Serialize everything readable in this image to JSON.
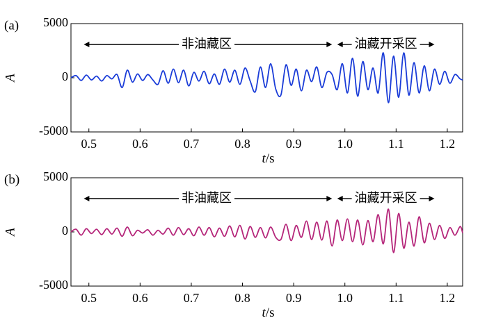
{
  "chart_data": [
    {
      "type": "line",
      "panel_label": "(a)",
      "xlabel_italic": "t",
      "xlabel_unit": "/s",
      "ylabel": "A",
      "xlim": [
        0.465,
        1.23
      ],
      "ylim": [
        -5000,
        5000
      ],
      "yticks": [
        "5000",
        "0",
        "-5000"
      ],
      "xticks": [
        {
          "value": 0.5,
          "label": "0.5"
        },
        {
          "value": 0.6,
          "label": "0.6"
        },
        {
          "value": 0.7,
          "label": "0.7"
        },
        {
          "value": 0.8,
          "label": "0.8"
        },
        {
          "value": 0.9,
          "label": "0.9"
        },
        {
          "value": 1.0,
          "label": "1.0"
        },
        {
          "value": 1.1,
          "label": "1.1"
        },
        {
          "value": 1.2,
          "label": "1.2"
        }
      ],
      "annotations": [
        {
          "text": "非油藏区",
          "x_start": 0.49,
          "x_end": 0.975,
          "text_x": 0.73
        },
        {
          "text": "油藏开采区",
          "x_start": 0.985,
          "x_end": 1.175,
          "text_x": 1.08
        }
      ],
      "color": "#1a3cd8",
      "series": [
        {
          "x": [
            0.465,
            0.475,
            0.485,
            0.495,
            0.505,
            0.515,
            0.525,
            0.535,
            0.545,
            0.555,
            0.565,
            0.575,
            0.585,
            0.595,
            0.605,
            0.615,
            0.625,
            0.635,
            0.645,
            0.655,
            0.665,
            0.675,
            0.685,
            0.695,
            0.705,
            0.715,
            0.725,
            0.735,
            0.745,
            0.755,
            0.765,
            0.775,
            0.785,
            0.795,
            0.805,
            0.815,
            0.825,
            0.835,
            0.845,
            0.855,
            0.865,
            0.875,
            0.885,
            0.895,
            0.905,
            0.915,
            0.925,
            0.935,
            0.945,
            0.955,
            0.965,
            0.975,
            0.985,
            0.995,
            1.005,
            1.015,
            1.025,
            1.035,
            1.045,
            1.055,
            1.065,
            1.075,
            1.085,
            1.095,
            1.105,
            1.115,
            1.125,
            1.135,
            1.145,
            1.155,
            1.165,
            1.175,
            1.185,
            1.195,
            1.205,
            1.215,
            1.225,
            1.23
          ],
          "y": [
            0,
            200,
            -250,
            250,
            -200,
            150,
            -300,
            200,
            -100,
            300,
            -900,
            700,
            -400,
            350,
            -250,
            300,
            -200,
            -600,
            650,
            -500,
            800,
            -450,
            700,
            -750,
            500,
            -300,
            600,
            -550,
            350,
            -600,
            800,
            -400,
            700,
            -600,
            900,
            -300,
            -1300,
            1000,
            -900,
            1300,
            -1050,
            -1600,
            1200,
            -700,
            800,
            -1200,
            700,
            -350,
            1000,
            -900,
            500,
            300,
            -1100,
            1300,
            -1400,
            1800,
            -1700,
            1500,
            -1100,
            900,
            -1400,
            2300,
            -2300,
            2000,
            -1800,
            2300,
            -1600,
            1400,
            -1400,
            1100,
            -1200,
            800,
            -600,
            600,
            -500,
            300,
            -100,
            -200
          ]
        }
      ]
    },
    {
      "type": "line",
      "panel_label": "(b)",
      "xlabel_italic": "t",
      "xlabel_unit": "/s",
      "ylabel": "A",
      "xlim": [
        0.465,
        1.23
      ],
      "ylim": [
        -5000,
        5000
      ],
      "yticks": [
        "5000",
        "0",
        "-5000"
      ],
      "xticks": [
        {
          "value": 0.5,
          "label": "0.5"
        },
        {
          "value": 0.6,
          "label": "0.6"
        },
        {
          "value": 0.7,
          "label": "0.7"
        },
        {
          "value": 0.8,
          "label": "0.8"
        },
        {
          "value": 0.9,
          "label": "0.9"
        },
        {
          "value": 1.0,
          "label": "1.0"
        },
        {
          "value": 1.1,
          "label": "1.1"
        },
        {
          "value": 1.2,
          "label": "1.2"
        }
      ],
      "annotations": [
        {
          "text": "非油藏区",
          "x_start": 0.49,
          "x_end": 0.975,
          "text_x": 0.73
        },
        {
          "text": "油藏开采区",
          "x_start": 0.985,
          "x_end": 1.175,
          "text_x": 1.08
        }
      ],
      "color": "#b5267a",
      "series": [
        {
          "x": [
            0.465,
            0.475,
            0.485,
            0.495,
            0.505,
            0.515,
            0.525,
            0.535,
            0.545,
            0.555,
            0.565,
            0.575,
            0.585,
            0.595,
            0.605,
            0.615,
            0.625,
            0.635,
            0.645,
            0.655,
            0.665,
            0.675,
            0.685,
            0.695,
            0.705,
            0.715,
            0.725,
            0.735,
            0.745,
            0.755,
            0.765,
            0.775,
            0.785,
            0.795,
            0.805,
            0.815,
            0.825,
            0.835,
            0.845,
            0.855,
            0.865,
            0.875,
            0.885,
            0.895,
            0.905,
            0.915,
            0.925,
            0.935,
            0.945,
            0.955,
            0.965,
            0.975,
            0.985,
            0.995,
            1.005,
            1.015,
            1.025,
            1.035,
            1.045,
            1.055,
            1.065,
            1.075,
            1.085,
            1.095,
            1.105,
            1.115,
            1.125,
            1.135,
            1.145,
            1.155,
            1.165,
            1.175,
            1.185,
            1.195,
            1.205,
            1.215,
            1.225,
            1.23
          ],
          "y": [
            0,
            250,
            -300,
            300,
            -150,
            250,
            -250,
            300,
            -200,
            350,
            -400,
            450,
            -350,
            150,
            -100,
            200,
            -300,
            150,
            -200,
            350,
            -300,
            400,
            -250,
            300,
            -350,
            450,
            -300,
            400,
            -450,
            350,
            -400,
            550,
            -450,
            600,
            -650,
            500,
            -500,
            400,
            -550,
            450,
            -500,
            -700,
            700,
            -800,
            600,
            -500,
            1000,
            -700,
            900,
            -750,
            1000,
            -1300,
            1100,
            -800,
            1200,
            -900,
            1100,
            -1200,
            1050,
            -900,
            1600,
            -1100,
            2100,
            -1900,
            1700,
            -1500,
            900,
            -1300,
            1400,
            -1000,
            800,
            -700,
            600,
            -600,
            400,
            -300,
            500,
            -100
          ]
        }
      ]
    }
  ]
}
